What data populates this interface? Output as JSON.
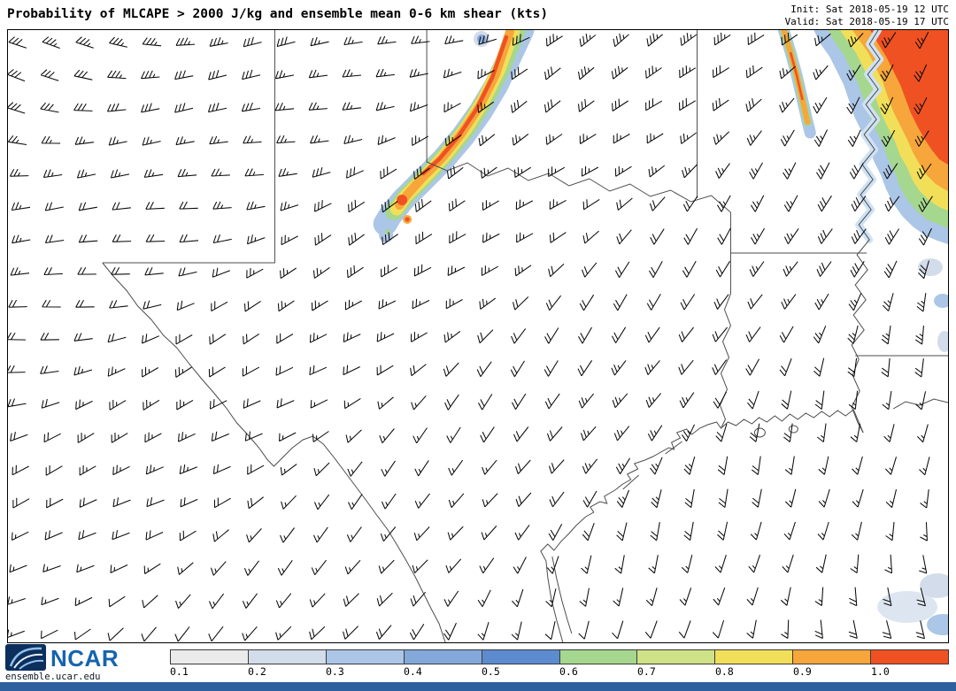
{
  "header": {
    "title": "Probability of MLCAPE > 2000 J/kg and ensemble mean 0-6 km shear (kts)",
    "init": "Init: Sat 2018-05-19 12 UTC",
    "valid": "Valid: Sat 2018-05-19 17 UTC"
  },
  "footer": {
    "logo_text": "NCAR",
    "site_url": "ensemble.ucar.edu",
    "colorbar": {
      "labels": [
        "0.1",
        "0.2",
        "0.3",
        "0.4",
        "0.5",
        "0.6",
        "0.7",
        "0.8",
        "0.9",
        "1.0"
      ],
      "colors": [
        "#ebebeb",
        "#d3dcea",
        "#abc6e6",
        "#83a8da",
        "#5d8bd0",
        "#a6d78e",
        "#cfe287",
        "#f1df5a",
        "#f6a63b",
        "#ef5123"
      ]
    }
  },
  "chart_data": {
    "type": "heatmap",
    "title": "Probability of MLCAPE > 2000 J/kg",
    "overlay": "Ensemble mean 0-6 km shear wind barbs (kts)",
    "colorbar_ticks": [
      0.1,
      0.2,
      0.3,
      0.4,
      0.5,
      0.6,
      0.7,
      0.8,
      0.9,
      1.0
    ],
    "legend_position": "bottom",
    "high_probability_regions": [
      {
        "name": "North Texas / Red River SW-NE oriented dryline band",
        "max_probability": 1.0
      },
      {
        "name": "Arkansas area, northeast corner of domain",
        "max_probability": 1.0
      },
      {
        "name": "Small low-probability patches, lower right coast and east edge",
        "max_probability": 0.3
      }
    ],
    "shear_barb_speed_range_kts": [
      10,
      35
    ]
  }
}
